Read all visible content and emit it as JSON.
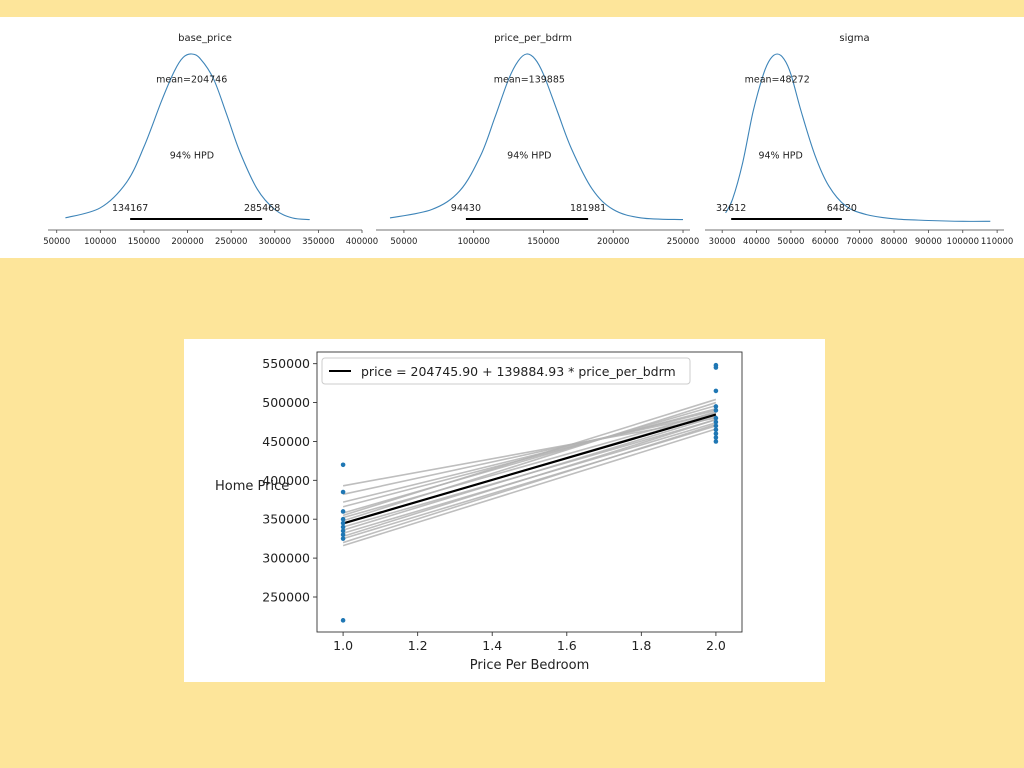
{
  "colors": {
    "page_background": "#fde59a",
    "density_line": "#3d84b8",
    "hpd_bar": "#000000",
    "points": "#1f77b4",
    "posterior_lines": "#b3b3b3",
    "mean_line": "#000000"
  },
  "chart_data": [
    {
      "type": "line",
      "title": "base_price",
      "mean_label": "mean=204746",
      "hpd_label": "94% HPD",
      "hpd_interval": [
        134167,
        285468
      ],
      "hpd_low_label": "134167",
      "hpd_high_label": "285468",
      "xlim": [
        40000,
        400000
      ],
      "x_ticks": [
        50000,
        100000,
        150000,
        200000,
        250000,
        300000,
        350000,
        400000
      ],
      "density": {
        "x": [
          60000,
          100000,
          130000,
          150000,
          170000,
          185000,
          195000,
          205000,
          215000,
          230000,
          245000,
          260000,
          280000,
          300000,
          320000,
          340000
        ],
        "y": [
          0.03,
          0.09,
          0.24,
          0.45,
          0.72,
          0.9,
          0.98,
          1.0,
          0.97,
          0.85,
          0.64,
          0.42,
          0.2,
          0.08,
          0.03,
          0.02
        ]
      },
      "mean_label_at": [
        204746,
        0.85
      ],
      "hpd_label_at": [
        205000,
        0.4
      ]
    },
    {
      "type": "line",
      "title": "price_per_bdrm",
      "mean_label": "mean=139885",
      "hpd_label": "94% HPD",
      "hpd_interval": [
        94430,
        181981
      ],
      "hpd_low_label": "94430",
      "hpd_high_label": "181981",
      "xlim": [
        30000,
        255000
      ],
      "x_ticks": [
        50000,
        100000,
        150000,
        200000,
        250000
      ],
      "density": {
        "x": [
          40000,
          70000,
          90000,
          105000,
          115000,
          125000,
          132000,
          138000,
          144000,
          150000,
          160000,
          170000,
          185000,
          200000,
          220000,
          250000
        ],
        "y": [
          0.03,
          0.08,
          0.19,
          0.4,
          0.62,
          0.85,
          0.96,
          1.0,
          0.97,
          0.88,
          0.66,
          0.44,
          0.2,
          0.08,
          0.03,
          0.02
        ]
      },
      "mean_label_at": [
        139885,
        0.85
      ],
      "hpd_label_at": [
        139885,
        0.4
      ]
    },
    {
      "type": "line",
      "title": "sigma",
      "mean_label": "mean=48272",
      "hpd_label": "94% HPD",
      "hpd_interval": [
        32612,
        64820
      ],
      "hpd_low_label": "32612",
      "hpd_high_label": "64820",
      "xlim": [
        25000,
        112000
      ],
      "x_ticks": [
        30000,
        40000,
        50000,
        60000,
        70000,
        80000,
        90000,
        100000,
        110000
      ],
      "density": {
        "x": [
          31000,
          33000,
          36000,
          39000,
          42000,
          44000,
          46000,
          48000,
          50000,
          53000,
          57000,
          61000,
          66000,
          72000,
          80000,
          90000,
          100000,
          108000
        ],
        "y": [
          0.06,
          0.14,
          0.36,
          0.66,
          0.88,
          0.97,
          1.0,
          0.97,
          0.88,
          0.66,
          0.4,
          0.22,
          0.1,
          0.05,
          0.025,
          0.015,
          0.01,
          0.01
        ]
      },
      "mean_label_at": [
        46000,
        0.85
      ],
      "hpd_label_at": [
        47000,
        0.4
      ]
    },
    {
      "type": "scatter",
      "xlabel": "Price Per Bedroom",
      "ylabel": "Home Price",
      "xlim": [
        0.93,
        2.07
      ],
      "ylim": [
        205000,
        565000
      ],
      "x_ticks": [
        1.0,
        1.2,
        1.4,
        1.6,
        1.8,
        2.0
      ],
      "x_tick_labels": [
        "1.0",
        "1.2",
        "1.4",
        "1.6",
        "1.8",
        "2.0"
      ],
      "y_ticks": [
        250000,
        300000,
        350000,
        400000,
        450000,
        500000,
        550000
      ],
      "legend": "price = 204745.90 + 139884.93 * price_per_bdrm",
      "legend_position": "top-left",
      "mean_line": {
        "intercept": 204745.9,
        "slope": 139884.93
      },
      "points": {
        "x": [
          1,
          1,
          1,
          1,
          1,
          1,
          1,
          1,
          1,
          1,
          2,
          2,
          2,
          2,
          2,
          2,
          2,
          2,
          2,
          2,
          2,
          2
        ],
        "y": [
          420000,
          385000,
          360000,
          350000,
          345000,
          340000,
          335000,
          330000,
          325000,
          220000,
          548000,
          545000,
          515000,
          495000,
          490000,
          480000,
          475000,
          470000,
          465000,
          460000,
          455000,
          450000
        ]
      },
      "posterior_lines": [
        [
          393000,
          480000
        ],
        [
          382000,
          486000
        ],
        [
          372000,
          490000
        ],
        [
          366000,
          492000
        ],
        [
          358000,
          496000
        ],
        [
          352000,
          488000
        ],
        [
          348000,
          500000
        ],
        [
          344000,
          486000
        ],
        [
          340000,
          478000
        ],
        [
          336000,
          482000
        ],
        [
          332000,
          474000
        ],
        [
          328000,
          478000
        ],
        [
          325000,
          470000
        ],
        [
          320000,
          472000
        ],
        [
          316000,
          466000
        ],
        [
          355000,
          504000
        ]
      ]
    }
  ]
}
